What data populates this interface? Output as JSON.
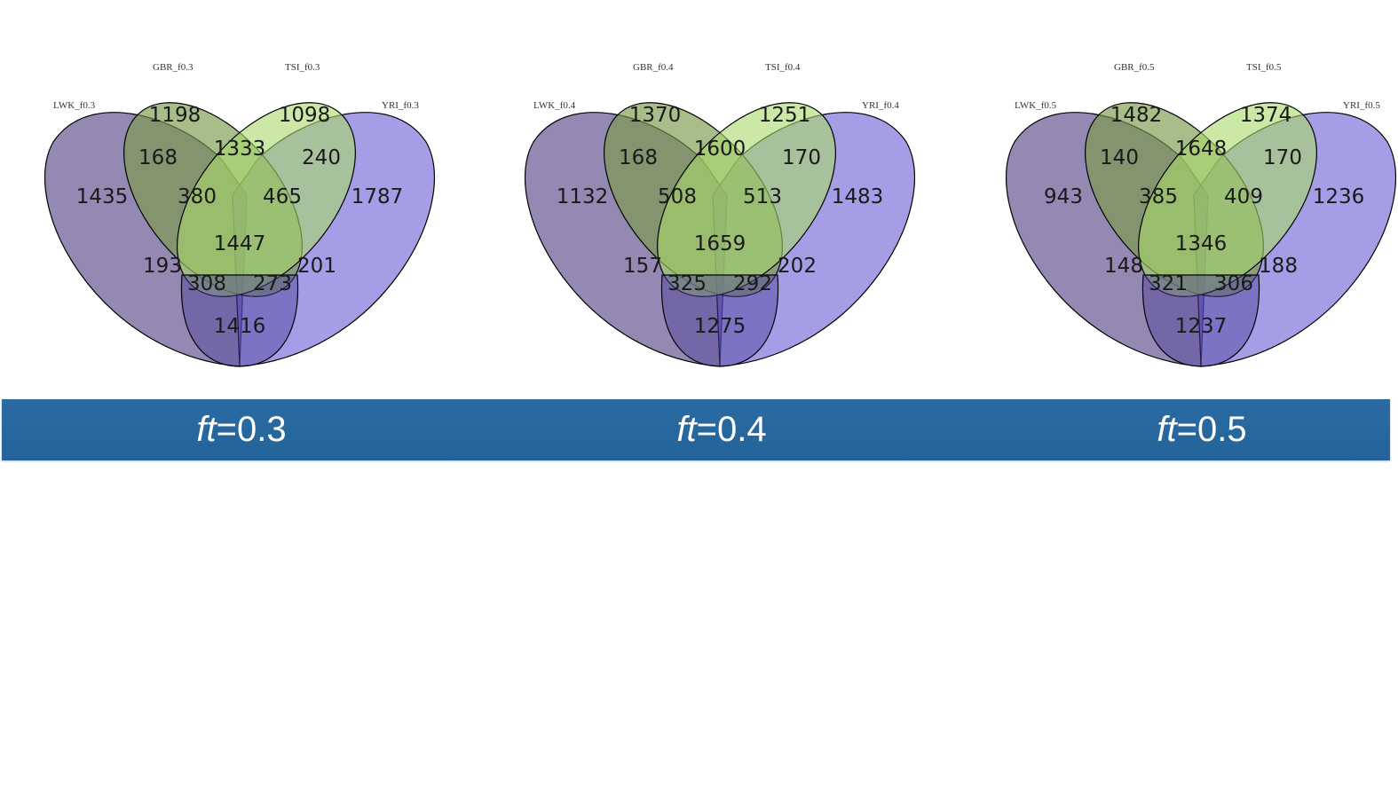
{
  "colors": {
    "band": "#23639a",
    "lwk": "#5b4a8a",
    "gbr": "#7a9a4c",
    "tsi": "#a9d96a",
    "yri": "#5b4ed1"
  },
  "diagrams": [
    {
      "set_labels": {
        "lwk": "LWK_f0.3",
        "gbr": "GBR_f0.3",
        "tsi": "TSI_f0.3",
        "yri": "YRI_f0.3"
      },
      "regions": {
        "gbr_only": "1198",
        "tsi_only": "1098",
        "gbr_tsi": "1333",
        "lwk_gbr": "168",
        "tsi_yri": "240",
        "lwk_only": "1435",
        "lwk_gbr_tsi": "380",
        "gbr_tsi_yri": "465",
        "yri_only": "1787",
        "all": "1447",
        "lwk_tsi": "193",
        "gbr_yri": "201",
        "lwk_tsi_yri": "308",
        "lwk_gbr_yri": "273",
        "lwk_yri": "1416"
      },
      "band": {
        "prefix": "ft",
        "value": "=0.3"
      }
    },
    {
      "set_labels": {
        "lwk": "LWK_f0.4",
        "gbr": "GBR_f0.4",
        "tsi": "TSI_f0.4",
        "yri": "YRI_f0.4"
      },
      "regions": {
        "gbr_only": "1370",
        "tsi_only": "1251",
        "gbr_tsi": "1600",
        "lwk_gbr": "168",
        "tsi_yri": "170",
        "lwk_only": "1132",
        "lwk_gbr_tsi": "508",
        "gbr_tsi_yri": "513",
        "yri_only": "1483",
        "all": "1659",
        "lwk_tsi": "157",
        "gbr_yri": "202",
        "lwk_tsi_yri": "325",
        "lwk_gbr_yri": "292",
        "lwk_yri": "1275"
      },
      "band": {
        "prefix": "ft",
        "value": "=0.4"
      }
    },
    {
      "set_labels": {
        "lwk": "LWK_f0.5",
        "gbr": "GBR_f0.5",
        "tsi": "TSI_f0.5",
        "yri": "YRI_f0.5"
      },
      "regions": {
        "gbr_only": "1482",
        "tsi_only": "1374",
        "gbr_tsi": "1648",
        "lwk_gbr": "140",
        "tsi_yri": "170",
        "lwk_only": "943",
        "lwk_gbr_tsi": "385",
        "gbr_tsi_yri": "409",
        "yri_only": "1236",
        "all": "1346",
        "lwk_tsi": "148",
        "gbr_yri": "188",
        "lwk_tsi_yri": "321",
        "lwk_gbr_yri": "306",
        "lwk_yri": "1237"
      },
      "band": {
        "prefix": "ft",
        "value": "=0.5"
      }
    }
  ]
}
